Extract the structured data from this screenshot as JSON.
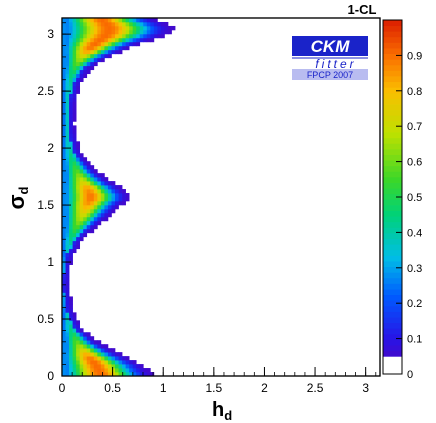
{
  "chart_data": {
    "type": "heatmap",
    "xlabel": "h",
    "xlabel_sub": "d",
    "ylabel": "σ",
    "ylabel_sub": "d",
    "xlim": [
      0,
      3.14159
    ],
    "ylim": [
      0,
      3.14159
    ],
    "xticks": [
      {
        "value": 0,
        "label": "0"
      },
      {
        "value": 0.5,
        "label": "0.5"
      },
      {
        "value": 1,
        "label": "1"
      },
      {
        "value": 1.5,
        "label": "1.5"
      },
      {
        "value": 2,
        "label": "2"
      },
      {
        "value": 2.5,
        "label": "2.5"
      },
      {
        "value": 3,
        "label": "3"
      }
    ],
    "yticks": [
      {
        "value": 0,
        "label": "0"
      },
      {
        "value": 0.5,
        "label": "0.5"
      },
      {
        "value": 1,
        "label": "1"
      },
      {
        "value": 1.5,
        "label": "1.5"
      },
      {
        "value": 2,
        "label": "2"
      },
      {
        "value": 2.5,
        "label": "2.5"
      },
      {
        "value": 3,
        "label": "3"
      }
    ],
    "colorbar": {
      "title": "1-CL",
      "range": [
        0,
        1
      ],
      "ticks": [
        {
          "value": 0,
          "label": "0"
        },
        {
          "value": 0.1,
          "label": "0.1"
        },
        {
          "value": 0.2,
          "label": "0.2"
        },
        {
          "value": 0.3,
          "label": "0.3"
        },
        {
          "value": 0.4,
          "label": "0.4"
        },
        {
          "value": 0.5,
          "label": "0.5"
        },
        {
          "value": 0.6,
          "label": "0.6"
        },
        {
          "value": 0.7,
          "label": "0.7"
        },
        {
          "value": 0.8,
          "label": "0.8"
        },
        {
          "value": 0.9,
          "label": "0.9"
        }
      ],
      "low_cut": 0.05
    },
    "region_boundary": [
      {
        "sigma": 0.0,
        "h_max": 0.93
      },
      {
        "sigma": 0.1,
        "h_max": 0.8
      },
      {
        "sigma": 0.2,
        "h_max": 0.56
      },
      {
        "sigma": 0.3,
        "h_max": 0.36
      },
      {
        "sigma": 0.4,
        "h_max": 0.22
      },
      {
        "sigma": 0.5,
        "h_max": 0.14
      },
      {
        "sigma": 0.6,
        "h_max": 0.1
      },
      {
        "sigma": 0.8,
        "h_max": 0.07
      },
      {
        "sigma": 1.0,
        "h_max": 0.09
      },
      {
        "sigma": 1.1,
        "h_max": 0.13
      },
      {
        "sigma": 1.2,
        "h_max": 0.21
      },
      {
        "sigma": 1.3,
        "h_max": 0.33
      },
      {
        "sigma": 1.4,
        "h_max": 0.47
      },
      {
        "sigma": 1.5,
        "h_max": 0.59
      },
      {
        "sigma": 1.57,
        "h_max": 0.69
      },
      {
        "sigma": 1.65,
        "h_max": 0.6
      },
      {
        "sigma": 1.7,
        "h_max": 0.5
      },
      {
        "sigma": 1.8,
        "h_max": 0.35
      },
      {
        "sigma": 1.9,
        "h_max": 0.24
      },
      {
        "sigma": 2.0,
        "h_max": 0.17
      },
      {
        "sigma": 2.2,
        "h_max": 0.12
      },
      {
        "sigma": 2.4,
        "h_max": 0.13
      },
      {
        "sigma": 2.6,
        "h_max": 0.2
      },
      {
        "sigma": 2.7,
        "h_max": 0.29
      },
      {
        "sigma": 2.8,
        "h_max": 0.47
      },
      {
        "sigma": 2.9,
        "h_max": 0.72
      },
      {
        "sigma": 2.98,
        "h_max": 1.0
      },
      {
        "sigma": 3.04,
        "h_max": 1.13
      },
      {
        "sigma": 3.09,
        "h_max": 1.05
      },
      {
        "sigma": 3.14159,
        "h_max": 0.9
      }
    ],
    "grid": false,
    "legend": "none"
  },
  "logo": {
    "main": "CKM",
    "sub": "fitter",
    "tag": "FPCP 2007",
    "colors": {
      "primary": "#1a23c9",
      "tag_bg": "#b9bcf0"
    }
  }
}
